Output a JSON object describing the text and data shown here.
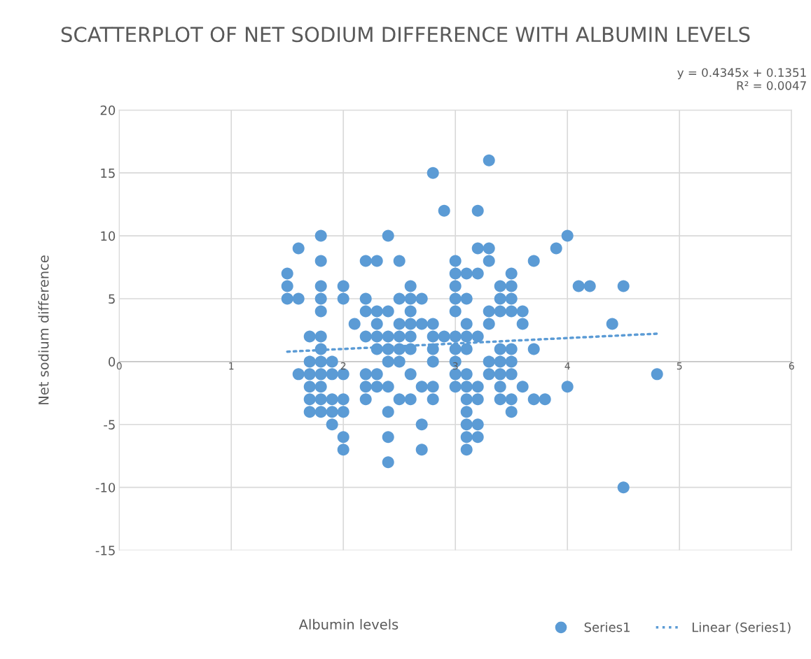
{
  "chart_data": {
    "type": "scatter",
    "title": "SCATTERPLOT OF NET SODIUM DIFFERENCE WITH ALBUMIN LEVELS",
    "xlabel": "Albumin levels",
    "ylabel": "Net sodium difference",
    "xlim": [
      0,
      6
    ],
    "xticks": [
      0,
      1,
      2,
      3,
      4,
      5,
      6
    ],
    "ylim": [
      -15,
      20
    ],
    "yticks": [
      -15,
      -10,
      -5,
      0,
      5,
      10,
      15,
      20
    ],
    "grid": true,
    "legend": "bottom right",
    "marker": "circle",
    "annotations": [
      "y = 0.4345x + 0.1351\nR² = 0.0047"
    ],
    "series": [
      {
        "name": "Series1",
        "color": "#5b9bd5",
        "x": [
          1.5,
          1.5,
          1.5,
          1.6,
          1.6,
          1.6,
          1.7,
          1.7,
          1.7,
          1.7,
          1.7,
          1.7,
          1.8,
          1.8,
          1.8,
          1.8,
          1.8,
          1.8,
          1.8,
          1.8,
          1.8,
          1.8,
          1.8,
          1.8,
          1.9,
          1.9,
          1.9,
          1.9,
          1.9,
          2.0,
          2.0,
          2.0,
          2.0,
          2.0,
          2.0,
          2.0,
          2.1,
          2.2,
          2.2,
          2.2,
          2.2,
          2.2,
          2.2,
          2.2,
          2.3,
          2.3,
          2.3,
          2.3,
          2.3,
          2.3,
          2.3,
          2.4,
          2.4,
          2.4,
          2.4,
          2.4,
          2.4,
          2.4,
          2.4,
          2.4,
          2.5,
          2.5,
          2.5,
          2.5,
          2.5,
          2.5,
          2.5,
          2.6,
          2.6,
          2.6,
          2.6,
          2.6,
          2.6,
          2.6,
          2.6,
          2.7,
          2.7,
          2.7,
          2.7,
          2.7,
          2.8,
          2.8,
          2.8,
          2.8,
          2.8,
          2.8,
          2.8,
          2.9,
          2.9,
          3.0,
          3.0,
          3.0,
          3.0,
          3.0,
          3.0,
          3.0,
          3.0,
          3.0,
          3.0,
          3.1,
          3.1,
          3.1,
          3.1,
          3.1,
          3.1,
          3.1,
          3.1,
          3.1,
          3.1,
          3.1,
          3.1,
          3.2,
          3.2,
          3.2,
          3.2,
          3.2,
          3.2,
          3.2,
          3.2,
          3.3,
          3.3,
          3.3,
          3.3,
          3.3,
          3.3,
          3.3,
          3.4,
          3.4,
          3.4,
          3.4,
          3.4,
          3.4,
          3.4,
          3.4,
          3.5,
          3.5,
          3.5,
          3.5,
          3.5,
          3.5,
          3.5,
          3.5,
          3.5,
          3.6,
          3.6,
          3.6,
          3.7,
          3.7,
          3.7,
          3.8,
          3.9,
          4.0,
          4.0,
          4.1,
          4.2,
          4.4,
          4.5,
          4.5,
          4.8
        ],
        "values": [
          7,
          6,
          5,
          9,
          5,
          -1,
          2,
          0,
          -1,
          -2,
          -3,
          -4,
          10,
          8,
          6,
          5,
          4,
          2,
          1,
          0,
          -1,
          -2,
          -3,
          -4,
          0,
          -1,
          -3,
          -4,
          -5,
          6,
          5,
          -1,
          -3,
          -4,
          -6,
          -7,
          3,
          8,
          5,
          4,
          2,
          -1,
          -2,
          -3,
          8,
          4,
          3,
          2,
          1,
          -1,
          -2,
          10,
          4,
          2,
          1,
          0,
          -2,
          -4,
          -6,
          -8,
          8,
          5,
          3,
          2,
          1,
          0,
          -3,
          6,
          5,
          4,
          3,
          2,
          1,
          -1,
          -3,
          5,
          3,
          -2,
          -5,
          -7,
          15,
          3,
          2,
          1,
          0,
          -2,
          -3,
          12,
          2,
          8,
          7,
          6,
          5,
          4,
          2,
          1,
          0,
          -1,
          -2,
          7,
          5,
          3,
          2,
          1,
          -1,
          -2,
          -3,
          -4,
          -5,
          -6,
          -7,
          12,
          9,
          7,
          2,
          -2,
          -3,
          -5,
          -6,
          16,
          9,
          8,
          4,
          3,
          0,
          -1,
          6,
          5,
          4,
          1,
          0,
          -1,
          -2,
          -3,
          7,
          6,
          5,
          4,
          1,
          0,
          -1,
          -3,
          -4,
          4,
          3,
          -2,
          8,
          1,
          -3,
          -3,
          9,
          10,
          -2,
          6,
          6,
          3,
          6,
          -10,
          -1
        ]
      },
      {
        "name": "Linear (Series1)",
        "type": "line",
        "color": "#5b9bd5",
        "line_style": "dotted",
        "marker": "none",
        "x": [
          1.5,
          4.8
        ],
        "values": [
          0.79,
          2.22
        ]
      }
    ]
  }
}
